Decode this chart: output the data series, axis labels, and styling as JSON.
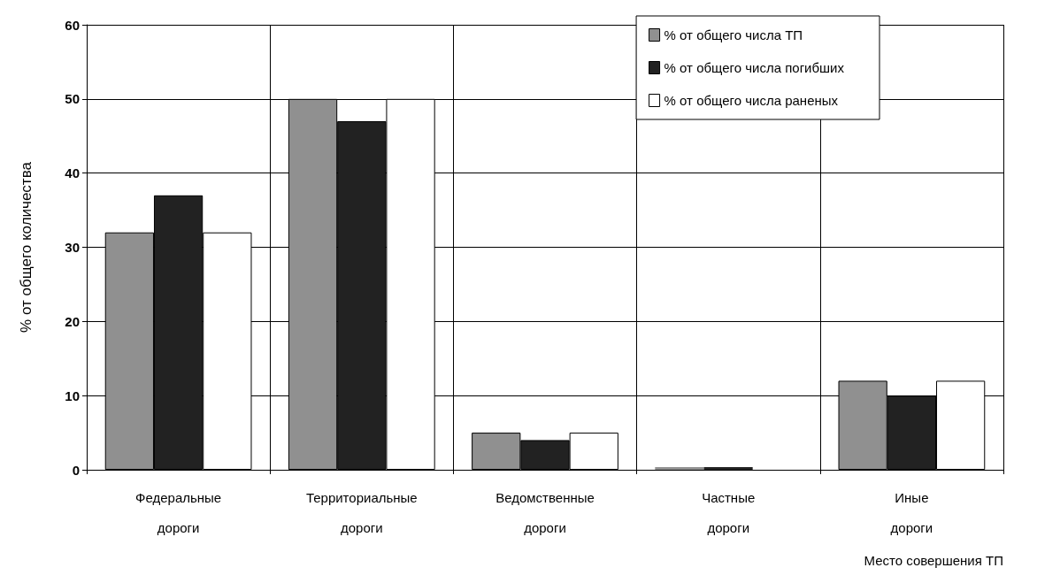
{
  "chart_data": {
    "type": "bar",
    "xlabel": "Место совершения ТП",
    "ylabel": "% от общего количества",
    "categories": [
      "Федеральные\nдороги",
      "Территориальные\nдороги",
      "Ведомственные\nдороги",
      "Частные\nдороги",
      "Иные\nдороги"
    ],
    "series": [
      {
        "name": "% от общего числа ТП",
        "color": "#909090",
        "values": [
          32,
          50,
          5,
          0,
          12
        ]
      },
      {
        "name": "% от общего числа погибших",
        "color": "#222222",
        "values": [
          37,
          47,
          4,
          0,
          10
        ]
      },
      {
        "name": "% от общего числа раненых",
        "color": "#ffffff",
        "values": [
          32,
          50,
          5,
          0,
          12
        ]
      }
    ],
    "ylim": [
      0,
      60
    ],
    "yticks": [
      0,
      10,
      20,
      30,
      40,
      50,
      60
    ],
    "grid": true,
    "legend": "top right"
  }
}
